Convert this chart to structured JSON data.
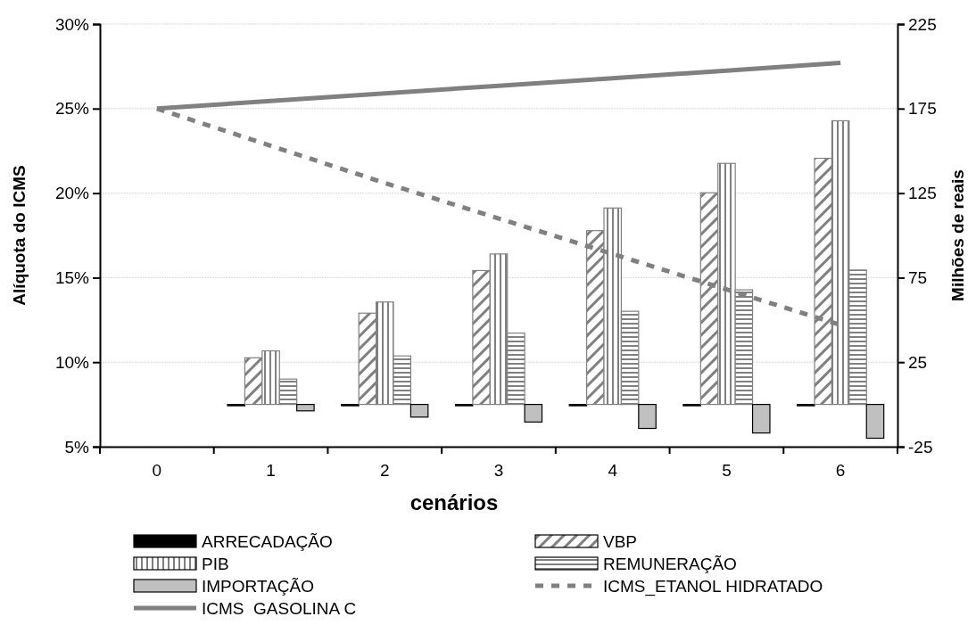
{
  "chart_data": {
    "type": "bar",
    "xlabel": "cenários",
    "ylabel": "Alíquota do ICMS",
    "y2label": "Milhões de reais",
    "categories": [
      "0",
      "1",
      "2",
      "3",
      "4",
      "5",
      "6"
    ],
    "series": [
      {
        "name": "ARRECADAÇÃO",
        "axis": "y2",
        "color": "#000000",
        "values": [
          null,
          -0.5,
          0,
          0,
          0,
          -0.5,
          -0.5
        ]
      },
      {
        "name": "VBP",
        "axis": "y2",
        "color": "#808080",
        "values": [
          null,
          27.6,
          54,
          79.2,
          102.8,
          125.2,
          145.6
        ]
      },
      {
        "name": "PIB",
        "axis": "y2",
        "color": "#808080",
        "values": [
          null,
          31.7,
          60.6,
          89,
          116.2,
          142.6,
          167.8
        ]
      },
      {
        "name": "REMUNERAÇÃO",
        "axis": "y2",
        "color": "#808080",
        "values": [
          null,
          15,
          28.7,
          42.2,
          55.1,
          67.8,
          79.5
        ]
      },
      {
        "name": "IMPORTAÇÃO",
        "axis": "y2",
        "color": "#c0c0c0",
        "values": [
          null,
          -3.8,
          -7.5,
          -10.4,
          -14.2,
          -16.9,
          -20
        ]
      },
      {
        "name": "ICMS_ETANOL HIDRATADO",
        "type": "line",
        "axis": "y",
        "color": "#808080",
        "line_style": "dashed",
        "values": [
          25,
          22.8,
          20.6,
          18.5,
          16.4,
          14.3,
          12.2
        ]
      },
      {
        "name": "ICMS  GASOLINA C",
        "type": "line",
        "axis": "y",
        "color": "#808080",
        "line_style": "solid",
        "values": [
          25,
          25.45,
          25.9,
          26.35,
          26.8,
          27.25,
          27.7
        ]
      }
    ],
    "ylim": [
      5,
      30
    ],
    "yticks": [
      {
        "value": 5,
        "label": "5%"
      },
      {
        "value": 10,
        "label": "10%"
      },
      {
        "value": 15,
        "label": "15%"
      },
      {
        "value": 20,
        "label": "20%"
      },
      {
        "value": 25,
        "label": "25%"
      },
      {
        "value": 30,
        "label": "30%"
      }
    ],
    "y2lim": [
      -25,
      225
    ],
    "y2ticks": [
      -25,
      25,
      75,
      125,
      175,
      225
    ],
    "grid": "y",
    "legend": "bottom",
    "marker": "none"
  }
}
